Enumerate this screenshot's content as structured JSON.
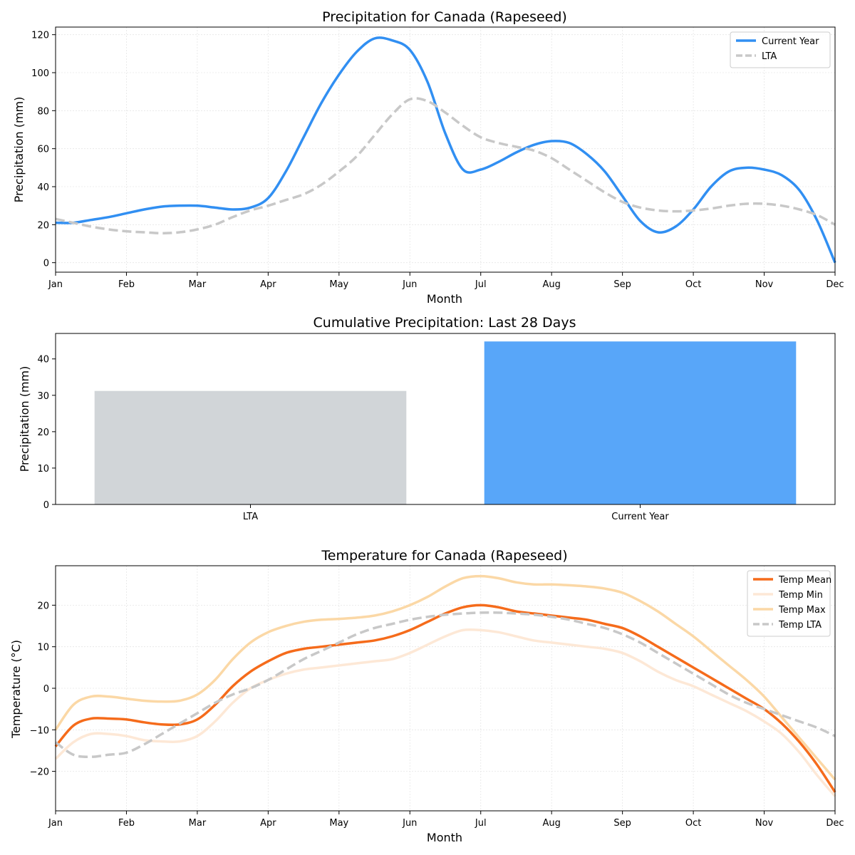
{
  "chart_data": [
    {
      "type": "line",
      "title": "Precipitation for Canada (Rapeseed)",
      "xlabel": "Month",
      "ylabel": "Precipitation (mm)",
      "xticklabels": [
        "Jan",
        "Feb",
        "Mar",
        "Apr",
        "May",
        "Jun",
        "Jul",
        "Aug",
        "Sep",
        "Oct",
        "Nov",
        "Dec"
      ],
      "xlim": [
        0,
        11
      ],
      "ylim": [
        -5,
        124
      ],
      "yticks": [
        0,
        20,
        40,
        60,
        80,
        100,
        120
      ],
      "grid": true,
      "legend": "top-right",
      "series": [
        {
          "name": "Current Year",
          "color": "#318ff2",
          "style": "solid",
          "x": [
            0,
            0.25,
            0.5,
            0.75,
            1,
            1.25,
            1.5,
            1.75,
            2,
            2.25,
            2.5,
            2.75,
            3,
            3.25,
            3.5,
            3.75,
            4,
            4.25,
            4.5,
            4.75,
            5,
            5.25,
            5.5,
            5.75,
            6,
            6.25,
            6.5,
            6.75,
            7,
            7.25,
            7.5,
            7.75,
            8,
            8.25,
            8.5,
            8.75,
            9,
            9.25,
            9.5,
            9.75,
            10,
            10.25,
            10.5,
            10.75,
            11
          ],
          "y": [
            21,
            21,
            22.5,
            24,
            26,
            28,
            29.5,
            30,
            30,
            29,
            28,
            29,
            34,
            48,
            66,
            84,
            99,
            111,
            118,
            117,
            112,
            95,
            68,
            49,
            49,
            53,
            58,
            62,
            64,
            63,
            57,
            48,
            35,
            22,
            16,
            19,
            28,
            40,
            48,
            50,
            49,
            46,
            38,
            22,
            0
          ]
        },
        {
          "name": "LTA",
          "color": "#c8c8c8",
          "style": "dashed",
          "x": [
            0,
            0.25,
            0.5,
            0.75,
            1,
            1.25,
            1.5,
            1.75,
            2,
            2.25,
            2.5,
            2.75,
            3,
            3.25,
            3.5,
            3.75,
            4,
            4.25,
            4.5,
            4.75,
            5,
            5.25,
            5.5,
            5.75,
            6,
            6.25,
            6.5,
            6.75,
            7,
            7.25,
            7.5,
            7.75,
            8,
            8.25,
            8.5,
            8.75,
            9,
            9.25,
            9.5,
            9.75,
            10,
            10.25,
            10.5,
            10.75,
            11
          ],
          "y": [
            23,
            21,
            19,
            17.5,
            16.5,
            16,
            15.5,
            16,
            17.5,
            20,
            24,
            27.5,
            30,
            33,
            36,
            41,
            48,
            56,
            67,
            78,
            86,
            85,
            79,
            72,
            66,
            63,
            61,
            59,
            55,
            49,
            43,
            37,
            32,
            29,
            27.5,
            27,
            27.5,
            28.5,
            30,
            31,
            31,
            30,
            28,
            25,
            20
          ]
        }
      ]
    },
    {
      "type": "bar",
      "title": "Cumulative Precipitation: Last 28 Days",
      "xlabel": "",
      "ylabel": "Precipitation (mm)",
      "categories": [
        "LTA",
        "Current Year"
      ],
      "values": [
        31.2,
        44.8
      ],
      "colors": [
        "#d1d5d8",
        "#58a6f9"
      ],
      "ylim": [
        0,
        47
      ],
      "yticks": [
        0,
        10,
        20,
        30,
        40
      ],
      "grid": false
    },
    {
      "type": "line",
      "title": "Temperature for Canada (Rapeseed)",
      "xlabel": "Month",
      "ylabel": "Temperature (°C)",
      "xticklabels": [
        "Jan",
        "Feb",
        "Mar",
        "Apr",
        "May",
        "Jun",
        "Jul",
        "Aug",
        "Sep",
        "Oct",
        "Nov",
        "Dec"
      ],
      "xlim": [
        0,
        11
      ],
      "ylim": [
        -29.5,
        29.5
      ],
      "yticks": [
        -20,
        -10,
        0,
        10,
        20
      ],
      "yticklabels": [
        "−20",
        "−10",
        "0",
        "10",
        "20"
      ],
      "grid": true,
      "legend": "top-right",
      "series": [
        {
          "name": "Temp Mean",
          "color": "#f56b1b",
          "style": "solid",
          "x": [
            0,
            0.25,
            0.5,
            0.75,
            1,
            1.25,
            1.5,
            1.75,
            2,
            2.25,
            2.5,
            2.75,
            3,
            3.25,
            3.5,
            3.75,
            4,
            4.25,
            4.5,
            4.75,
            5,
            5.25,
            5.5,
            5.75,
            6,
            6.25,
            6.5,
            6.75,
            7,
            7.25,
            7.5,
            7.75,
            8,
            8.25,
            8.5,
            8.75,
            9,
            9.25,
            9.5,
            9.75,
            10,
            10.25,
            10.5,
            10.75,
            11
          ],
          "y": [
            -14,
            -9,
            -7.3,
            -7.3,
            -7.5,
            -8.2,
            -8.7,
            -8.7,
            -7.5,
            -4,
            0.5,
            4,
            6.5,
            8.5,
            9.5,
            10,
            10.5,
            11,
            11.5,
            12.5,
            14,
            16,
            18,
            19.5,
            20,
            19.5,
            18.5,
            18,
            17.5,
            17,
            16.5,
            15.5,
            14.5,
            12.5,
            10,
            7.5,
            5,
            2.5,
            0,
            -2.5,
            -5,
            -8.5,
            -13,
            -18.5,
            -25
          ]
        },
        {
          "name": "Temp Min",
          "color": "#fde8d6",
          "style": "solid",
          "x": [
            0,
            0.25,
            0.5,
            0.75,
            1,
            1.25,
            1.5,
            1.75,
            2,
            2.25,
            2.5,
            2.75,
            3,
            3.25,
            3.5,
            3.75,
            4,
            4.25,
            4.5,
            4.75,
            5,
            5.25,
            5.5,
            5.75,
            6,
            6.25,
            6.5,
            6.75,
            7,
            7.25,
            7.5,
            7.75,
            8,
            8.25,
            8.5,
            8.75,
            9,
            9.25,
            9.5,
            9.75,
            10,
            10.25,
            10.5,
            10.75,
            11
          ],
          "y": [
            -17,
            -13,
            -11,
            -11,
            -11.5,
            -12.5,
            -12.8,
            -12.8,
            -11.5,
            -8,
            -3.5,
            0,
            2,
            3.5,
            4.5,
            5,
            5.5,
            6,
            6.5,
            7,
            8.5,
            10.5,
            12.5,
            14,
            14,
            13.5,
            12.5,
            11.5,
            11,
            10.5,
            10,
            9.5,
            8.5,
            6.5,
            4,
            2,
            0.5,
            -1.5,
            -3.5,
            -5.5,
            -8,
            -11,
            -15.5,
            -21,
            -26
          ]
        },
        {
          "name": "Temp Max",
          "color": "#fbd8a6",
          "style": "solid",
          "x": [
            0,
            0.25,
            0.5,
            0.75,
            1,
            1.25,
            1.5,
            1.75,
            2,
            2.25,
            2.5,
            2.75,
            3,
            3.25,
            3.5,
            3.75,
            4,
            4.25,
            4.5,
            4.75,
            5,
            5.25,
            5.5,
            5.75,
            6,
            6.25,
            6.5,
            6.75,
            7,
            7.25,
            7.5,
            7.75,
            8,
            8.25,
            8.5,
            8.75,
            9,
            9.25,
            9.5,
            9.75,
            10,
            10.25,
            10.5,
            10.75,
            11
          ],
          "y": [
            -10,
            -4,
            -2,
            -2,
            -2.5,
            -3,
            -3.2,
            -3,
            -1.5,
            2,
            7,
            11,
            13.5,
            15,
            16,
            16.5,
            16.7,
            17,
            17.5,
            18.5,
            20,
            22,
            24.5,
            26.5,
            27,
            26.5,
            25.5,
            25,
            25,
            24.8,
            24.5,
            24,
            23,
            21,
            18.5,
            15.5,
            12.5,
            9,
            5.5,
            2,
            -2,
            -7,
            -12,
            -17,
            -22
          ]
        },
        {
          "name": "Temp LTA",
          "color": "#c8c8c8",
          "style": "dashed",
          "x": [
            0,
            0.25,
            0.5,
            0.75,
            1,
            1.25,
            1.5,
            1.75,
            2,
            2.25,
            2.5,
            2.75,
            3,
            3.25,
            3.5,
            3.75,
            4,
            4.25,
            4.5,
            4.75,
            5,
            5.25,
            5.5,
            5.75,
            6,
            6.25,
            6.5,
            6.75,
            7,
            7.25,
            7.5,
            7.75,
            8,
            8.25,
            8.5,
            8.75,
            9,
            9.25,
            9.5,
            9.75,
            10,
            10.25,
            10.5,
            10.75,
            11
          ],
          "y": [
            -13,
            -16,
            -16.5,
            -16,
            -15.5,
            -13.5,
            -11,
            -8.5,
            -6,
            -3.5,
            -1.5,
            0,
            2,
            4.5,
            7,
            9,
            11,
            13,
            14.5,
            15.5,
            16.5,
            17.2,
            17.7,
            18,
            18.2,
            18.2,
            18,
            17.7,
            17.2,
            16.5,
            15.5,
            14.5,
            13,
            11,
            8.5,
            6,
            3.5,
            1,
            -1.5,
            -3.5,
            -5,
            -6.5,
            -8,
            -9.5,
            -11.5
          ]
        }
      ]
    }
  ]
}
